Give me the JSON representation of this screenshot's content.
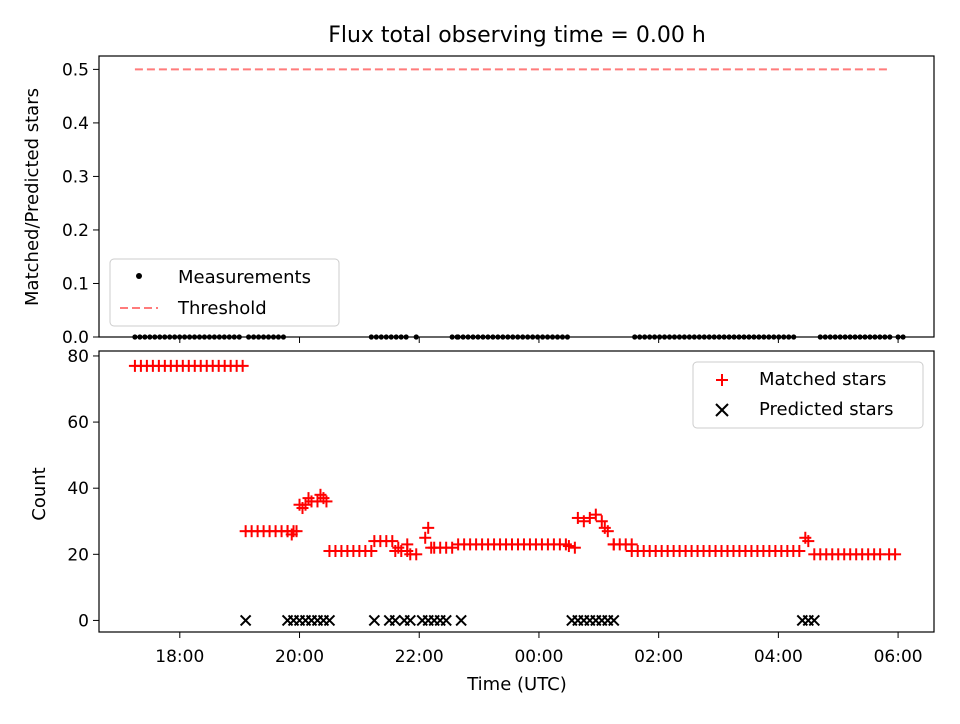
{
  "chart_data": [
    {
      "type": "scatter",
      "title": "Flux total observing time = 0.00 h",
      "ylabel": "Matched/Predicted stars",
      "xlabel": "",
      "ylim": [
        0,
        0.525
      ],
      "x_time_range_hours": [
        16.65,
        30.6
      ],
      "yticks": [
        0.0,
        0.1,
        0.2,
        0.3,
        0.4,
        0.5
      ],
      "ytick_labels": [
        "0.0",
        "0.1",
        "0.2",
        "0.3",
        "0.4",
        "0.5"
      ],
      "legend_position": "lower-left",
      "series": [
        {
          "name": "Measurements",
          "marker": "dot",
          "color": "#000000",
          "segments_hours": [
            [
              17.25,
              19.0
            ],
            [
              19.15,
              19.8
            ],
            [
              21.2,
              21.85
            ],
            [
              22.55,
              22.65
            ],
            [
              21.95,
              21.95
            ],
            [
              22.65,
              24.5
            ],
            [
              25.6,
              28.3
            ],
            [
              28.7,
              29.9
            ],
            [
              30.0,
              30.1
            ]
          ],
          "y": 0.0
        },
        {
          "name": "Threshold",
          "style": "dashed",
          "color": "#ff7b7b",
          "x_hours": [
            17.25,
            29.85
          ],
          "y": 0.5
        }
      ]
    },
    {
      "type": "scatter",
      "title": "",
      "ylabel": "Count",
      "xlabel": "Time (UTC)",
      "ylim": [
        -3.5,
        81.5
      ],
      "x_time_range_hours": [
        16.65,
        30.6
      ],
      "yticks": [
        0,
        20,
        40,
        60,
        80
      ],
      "ytick_labels": [
        "0",
        "20",
        "40",
        "60",
        "80"
      ],
      "xticks_hours": [
        18,
        20,
        22,
        24,
        26,
        28,
        30
      ],
      "xtick_labels": [
        "18:00",
        "20:00",
        "22:00",
        "00:00",
        "02:00",
        "04:00",
        "06:00"
      ],
      "legend_position": "upper-right",
      "series": [
        {
          "name": "Matched stars",
          "marker": "plus",
          "color": "#ff0000",
          "runs": [
            [
              17.25,
              19.05,
              77
            ],
            [
              19.1,
              19.8,
              27
            ],
            [
              19.8,
              19.95,
              27
            ],
            [
              20.5,
              21.25,
              21
            ],
            [
              21.25,
              21.55,
              24
            ],
            [
              21.6,
              21.8,
              21
            ],
            [
              21.85,
              22.0,
              20
            ],
            [
              22.25,
              22.4,
              22
            ],
            [
              22.45,
              22.6,
              22
            ],
            [
              22.65,
              24.5,
              23
            ],
            [
              25.25,
              25.55,
              23
            ],
            [
              25.55,
              28.4,
              21
            ],
            [
              28.6,
              29.7,
              20
            ],
            [
              29.85,
              29.95,
              20
            ]
          ],
          "points": [
            [
              19.87,
              26
            ],
            [
              19.95,
              27
            ],
            [
              20.0,
              35
            ],
            [
              20.05,
              34
            ],
            [
              20.1,
              35
            ],
            [
              20.15,
              37
            ],
            [
              20.2,
              36
            ],
            [
              20.3,
              36
            ],
            [
              20.35,
              38
            ],
            [
              20.4,
              37
            ],
            [
              20.45,
              36
            ],
            [
              21.65,
              22
            ],
            [
              21.8,
              23
            ],
            [
              22.1,
              25
            ],
            [
              22.15,
              28
            ],
            [
              22.2,
              22
            ],
            [
              24.5,
              22.5
            ],
            [
              24.6,
              22
            ],
            [
              24.65,
              31
            ],
            [
              24.75,
              30
            ],
            [
              24.85,
              31
            ],
            [
              24.95,
              32
            ],
            [
              25.05,
              30
            ],
            [
              25.1,
              28
            ],
            [
              25.15,
              27
            ],
            [
              25.25,
              23
            ],
            [
              28.45,
              25
            ],
            [
              28.5,
              24
            ]
          ]
        },
        {
          "name": "Predicted stars",
          "marker": "x",
          "color": "#000000",
          "points": [
            [
              19.1,
              0
            ],
            [
              19.8,
              0
            ],
            [
              19.9,
              0
            ],
            [
              20.0,
              0
            ],
            [
              20.1,
              0
            ],
            [
              20.2,
              0
            ],
            [
              20.3,
              0
            ],
            [
              20.4,
              0
            ],
            [
              20.5,
              0
            ],
            [
              21.25,
              0
            ],
            [
              21.5,
              0
            ],
            [
              21.6,
              0
            ],
            [
              21.75,
              0
            ],
            [
              21.85,
              0
            ],
            [
              22.05,
              0
            ],
            [
              22.15,
              0
            ],
            [
              22.25,
              0
            ],
            [
              22.35,
              0
            ],
            [
              22.45,
              0
            ],
            [
              22.7,
              0
            ],
            [
              24.55,
              0
            ],
            [
              24.65,
              0
            ],
            [
              24.75,
              0
            ],
            [
              24.85,
              0
            ],
            [
              24.95,
              0
            ],
            [
              25.05,
              0
            ],
            [
              25.15,
              0
            ],
            [
              25.25,
              0
            ],
            [
              28.4,
              0
            ],
            [
              28.5,
              0
            ],
            [
              28.6,
              0
            ]
          ]
        }
      ]
    }
  ]
}
